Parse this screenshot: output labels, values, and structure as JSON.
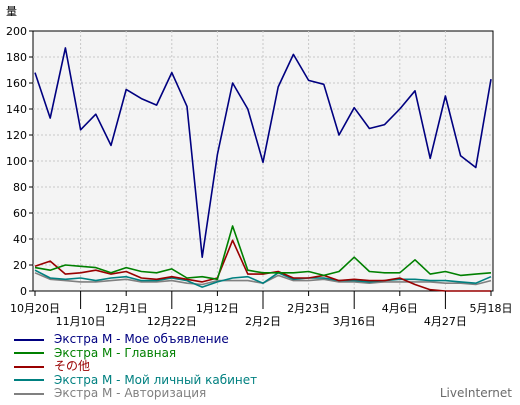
{
  "chart_data": {
    "type": "line",
    "ylabel": "量",
    "ylim": [
      0,
      200
    ],
    "y_ticks": [
      0,
      20,
      40,
      60,
      80,
      100,
      120,
      140,
      160,
      180,
      200
    ],
    "grid": true,
    "legend_position": "bottom-left",
    "x_tick_labels": [
      {
        "label": "10月20日",
        "index": 0,
        "row": 1
      },
      {
        "label": "11月10日",
        "index": 3,
        "row": 2
      },
      {
        "label": "12月1日",
        "index": 6,
        "row": 1
      },
      {
        "label": "12月22日",
        "index": 9,
        "row": 2
      },
      {
        "label": "1月12日",
        "index": 12,
        "row": 1
      },
      {
        "label": "2月2日",
        "index": 15,
        "row": 2
      },
      {
        "label": "2月23日",
        "index": 18,
        "row": 1
      },
      {
        "label": "3月16日",
        "index": 21,
        "row": 2
      },
      {
        "label": "4月6日",
        "index": 24,
        "row": 1
      },
      {
        "label": "4月27日",
        "index": 27,
        "row": 2
      },
      {
        "label": "5月18日",
        "index": 30,
        "row": 1
      }
    ],
    "series": [
      {
        "name": "Экстра М - Мое объявление",
        "color": "#000080",
        "values": [
          168,
          133,
          187,
          124,
          136,
          112,
          155,
          148,
          143,
          168,
          142,
          26,
          105,
          160,
          140,
          99,
          157,
          182,
          162,
          159,
          120,
          141,
          125,
          128,
          140,
          154,
          102,
          150,
          104,
          95,
          163
        ]
      },
      {
        "name": "Экстра М - Главная",
        "color": "#008000",
        "values": [
          18,
          16,
          20,
          19,
          18,
          14,
          18,
          15,
          14,
          17,
          10,
          11,
          9,
          50,
          16,
          14,
          14,
          14,
          15,
          12,
          15,
          26,
          15,
          14,
          14,
          24,
          13,
          15,
          12,
          13,
          14
        ]
      },
      {
        "name": "その他",
        "color": "#990000",
        "values": [
          19,
          23,
          13,
          14,
          16,
          13,
          15,
          10,
          9,
          11,
          9,
          7,
          10,
          39,
          13,
          13,
          15,
          10,
          10,
          12,
          8,
          9,
          8,
          8,
          10,
          5,
          1,
          0,
          0,
          0,
          0
        ]
      },
      {
        "name": "Экстра М - Мой личный кабинет",
        "color": "#008080",
        "values": [
          16,
          10,
          9,
          10,
          8,
          10,
          11,
          8,
          8,
          10,
          8,
          3,
          7,
          10,
          11,
          6,
          14,
          9,
          10,
          10,
          8,
          8,
          7,
          8,
          9,
          9,
          8,
          8,
          7,
          6,
          11
        ]
      },
      {
        "name": "Экстра М - Авторизация",
        "color": "#808080",
        "values": [
          14,
          9,
          8,
          7,
          7,
          8,
          9,
          7,
          7,
          8,
          6,
          5,
          8,
          8,
          8,
          6,
          12,
          8,
          8,
          9,
          7,
          7,
          6,
          7,
          7,
          7,
          7,
          6,
          6,
          5,
          8
        ]
      }
    ]
  },
  "watermark": "LiveInternet"
}
